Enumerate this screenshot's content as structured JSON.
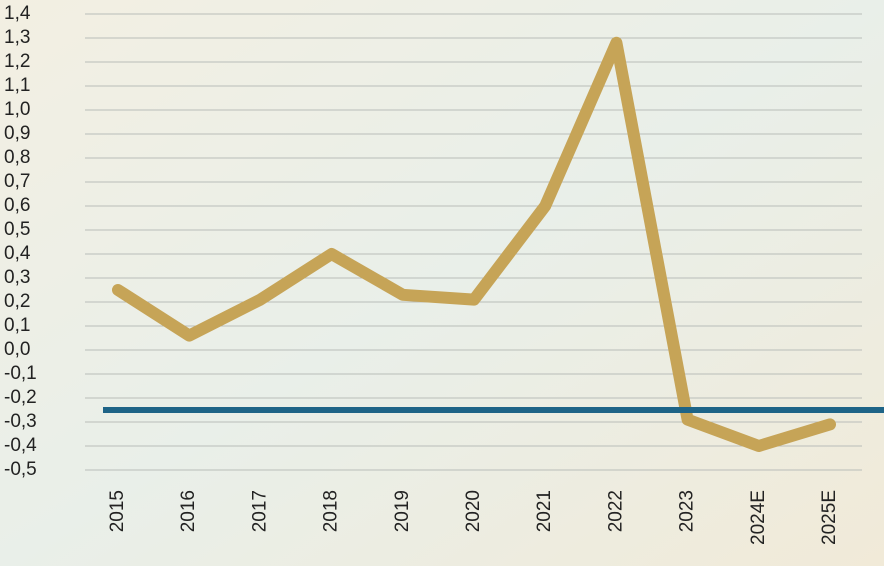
{
  "chart_data": {
    "type": "line",
    "categories": [
      "2015",
      "2016",
      "2017",
      "2018",
      "2019",
      "2020",
      "2021",
      "2022",
      "2023",
      "2024E",
      "2025E"
    ],
    "series": [
      {
        "color": "#c6a457",
        "values": [
          0.25,
          0.06,
          0.21,
          0.4,
          0.23,
          0.21,
          0.6,
          1.28,
          -0.29,
          -0.4,
          -0.31
        ]
      }
    ],
    "reference_line": {
      "value": -0.25,
      "color": "#1e6487"
    },
    "ylim": [
      -0.5,
      1.4
    ],
    "yticks": [
      {
        "value": -0.5,
        "label": "-0,5"
      },
      {
        "value": -0.4,
        "label": "-0,4"
      },
      {
        "value": -0.3,
        "label": "-0,3"
      },
      {
        "value": -0.2,
        "label": "-0,2"
      },
      {
        "value": -0.1,
        "label": "-0,1"
      },
      {
        "value": 0,
        "label": "0,0"
      },
      {
        "value": 0.1,
        "label": "0,1"
      },
      {
        "value": 0.2,
        "label": "0,2"
      },
      {
        "value": 0.3,
        "label": "0,3"
      },
      {
        "value": 0.4,
        "label": "0,4"
      },
      {
        "value": 0.5,
        "label": "0,5"
      },
      {
        "value": 0.6,
        "label": "0,6"
      },
      {
        "value": 0.7,
        "label": "0,7"
      },
      {
        "value": 0.8,
        "label": "0,8"
      },
      {
        "value": 0.9,
        "label": "0,9"
      },
      {
        "value": 1.0,
        "label": "1,0"
      },
      {
        "value": 1.1,
        "label": "1,1"
      },
      {
        "value": 1.2,
        "label": "1,2"
      },
      {
        "value": 1.3,
        "label": "1,3"
      },
      {
        "value": 1.4,
        "label": "1,4"
      }
    ],
    "grid": true
  }
}
